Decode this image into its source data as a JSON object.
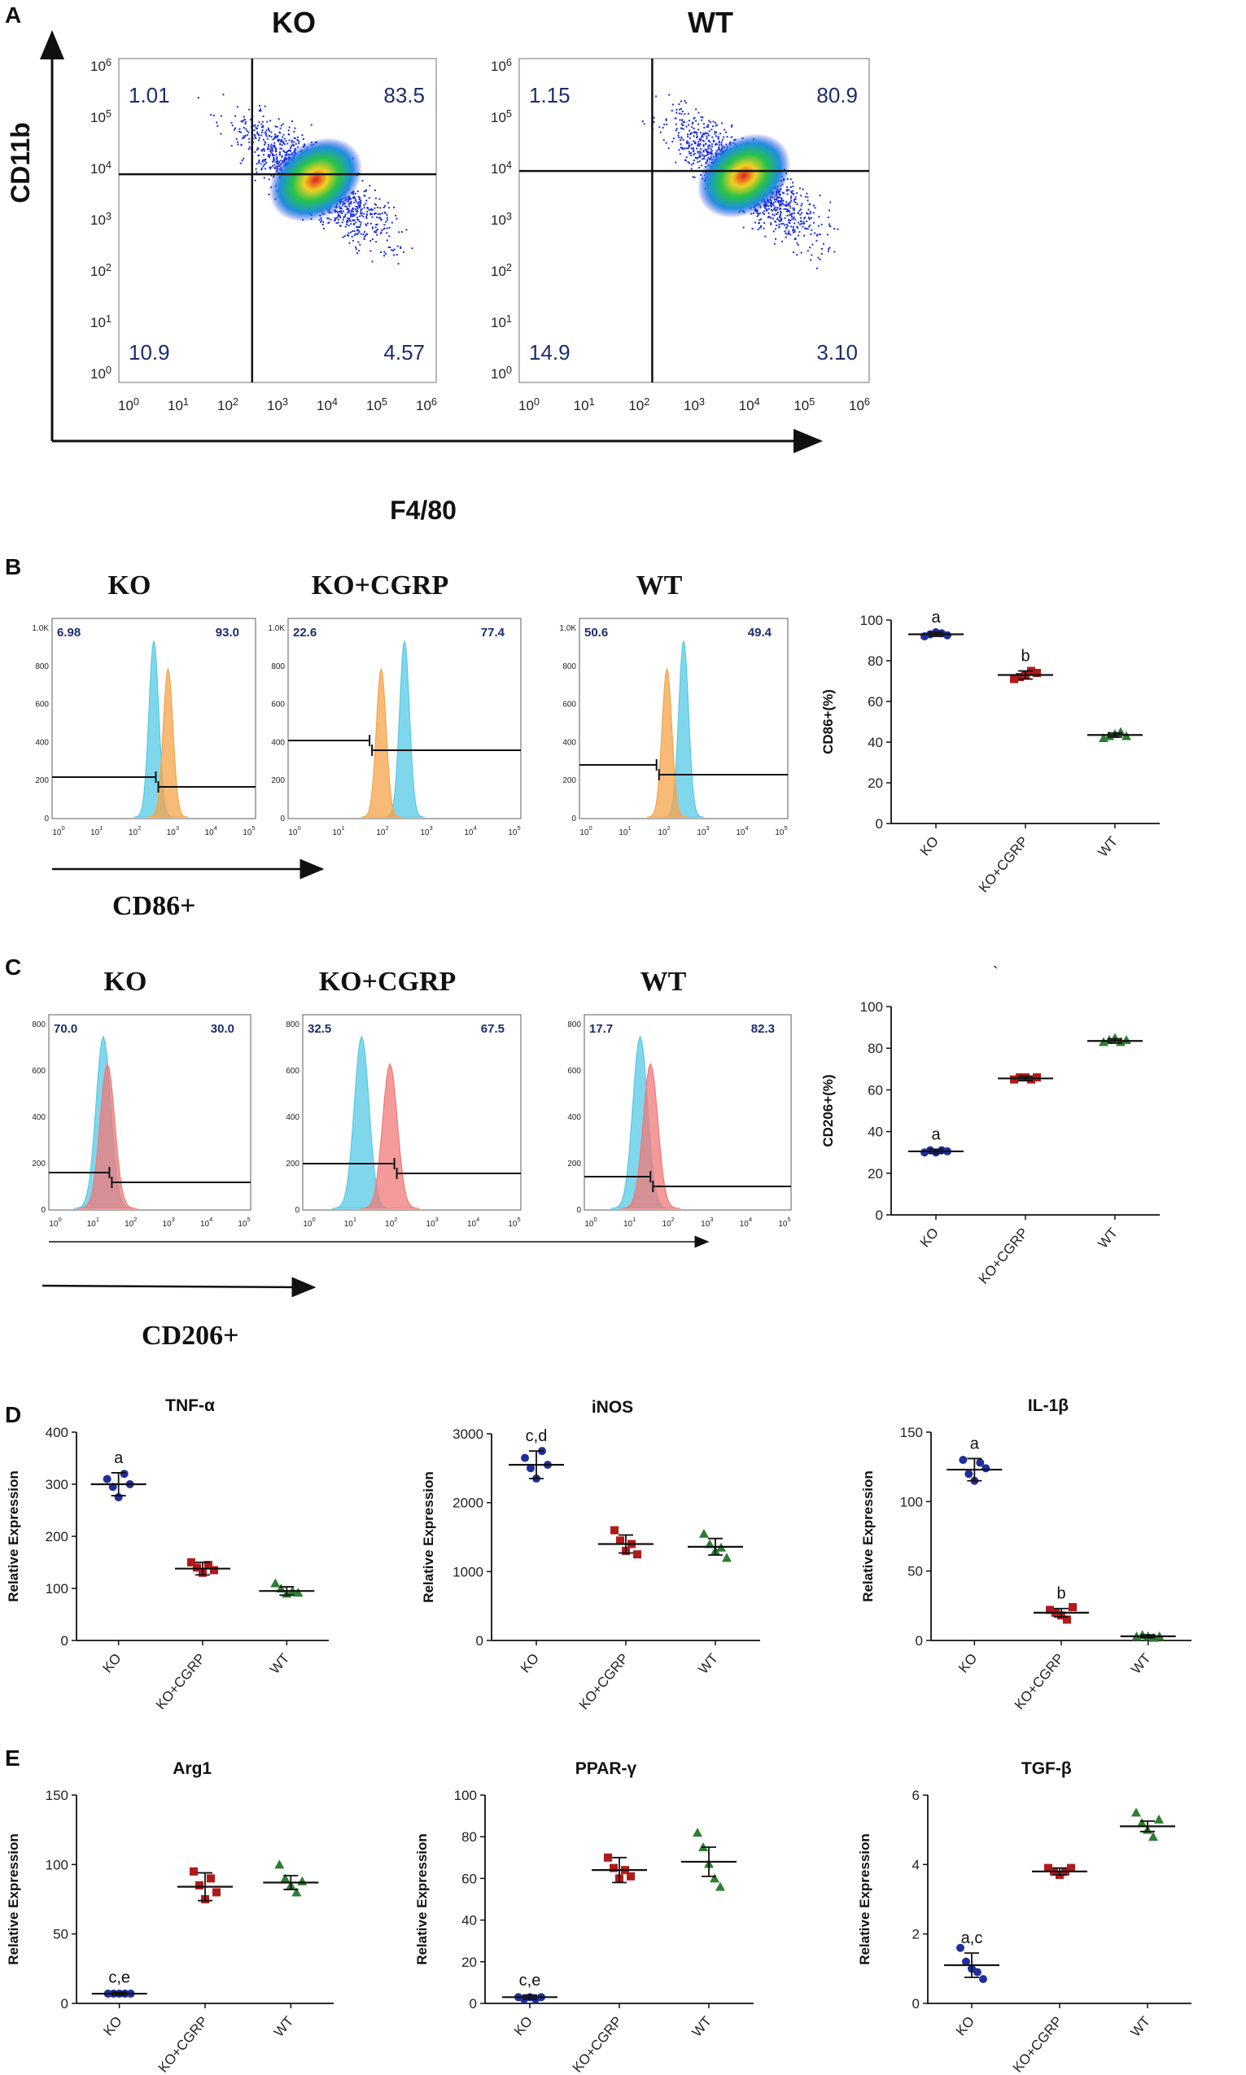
{
  "figure": {
    "panel_labels": [
      "A",
      "B",
      "C",
      "D",
      "E"
    ],
    "panelA": {
      "y_axis_label": "CD11b",
      "x_axis_label": "F4/80",
      "plots": [
        {
          "title": "KO",
          "quadrants": {
            "ul": "1.01",
            "ur": "83.5",
            "ll": "10.9",
            "lr": "4.57"
          }
        },
        {
          "title": "WT",
          "quadrants": {
            "ul": "1.15",
            "ur": "80.9",
            "ll": "14.9",
            "lr": "3.10"
          }
        }
      ]
    },
    "panelB": {
      "axis_label": "CD86+",
      "y_ticks": [
        "1.0K",
        "800",
        "600",
        "400",
        "200",
        "0"
      ],
      "histograms": [
        {
          "title": "KO",
          "left": "6.98",
          "right": "93.0"
        },
        {
          "title": "KO+CGRP",
          "left": "22.6",
          "right": "77.4"
        },
        {
          "title": "WT",
          "left": "50.6",
          "right": "49.4"
        }
      ]
    },
    "panelC": {
      "axis_label": "CD206+",
      "y_ticks": [
        "800",
        "600",
        "400",
        "200",
        "0"
      ],
      "histograms": [
        {
          "title": "KO",
          "left": "70.0",
          "right": "30.0"
        },
        {
          "title": "KO+CGRP",
          "left": "32.5",
          "right": "67.5"
        },
        {
          "title": "WT",
          "left": "17.7",
          "right": "82.3"
        }
      ]
    },
    "stray_mark": "`",
    "colors": {
      "KO": "#1f2f9a",
      "KO+CGRP": "#b11a1a",
      "WT": "#2e7d32",
      "hist_control": "#56c9e6",
      "hist_cd86": "#f5a34a",
      "hist_cd206": "#f07878",
      "density_low": "#1a2ee0",
      "density_high": "#e02020"
    }
  },
  "chart_data": [
    {
      "id": "B-dot",
      "type": "scatter",
      "title": "",
      "ylabel": "CD86+(%)",
      "ylim": [
        0,
        100
      ],
      "yticks": [
        0,
        20,
        40,
        60,
        80,
        100
      ],
      "categories": [
        "KO",
        "KO+CGRP",
        "WT"
      ],
      "means": [
        93,
        73,
        43.5
      ],
      "sd": [
        1,
        2,
        1
      ],
      "points": [
        [
          92,
          93,
          94,
          93.5,
          92.5
        ],
        [
          71,
          72,
          73,
          75,
          74
        ],
        [
          42,
          43,
          44,
          45,
          43
        ]
      ],
      "annotations": [
        "a",
        "b",
        ""
      ]
    },
    {
      "id": "C-dot",
      "type": "scatter",
      "title": "",
      "ylabel": "CD206+(%)",
      "ylim": [
        0,
        100
      ],
      "yticks": [
        0,
        20,
        40,
        60,
        80,
        100
      ],
      "categories": [
        "KO",
        "KO+CGRP",
        "WT"
      ],
      "means": [
        30.5,
        65.5,
        83.5
      ],
      "sd": [
        1,
        1,
        1
      ],
      "points": [
        [
          30,
          31,
          30,
          31,
          30.5
        ],
        [
          65,
          66,
          66,
          65,
          66
        ],
        [
          83,
          84,
          85,
          83,
          84
        ]
      ],
      "annotations": [
        "a",
        "",
        ""
      ]
    },
    {
      "id": "D-TNF",
      "type": "scatter",
      "title": "TNF-α",
      "ylabel": "Relative Expression",
      "ylim": [
        0,
        400
      ],
      "yticks": [
        0,
        100,
        200,
        300,
        400
      ],
      "categories": [
        "KO",
        "KO+CGRP",
        "WT"
      ],
      "means": [
        300,
        138,
        95
      ],
      "sd": [
        22,
        12,
        8
      ],
      "points": [
        [
          310,
          295,
          275,
          320,
          300
        ],
        [
          150,
          140,
          130,
          145,
          135
        ],
        [
          110,
          100,
          90,
          95,
          92
        ]
      ],
      "annotations": [
        "a",
        "",
        ""
      ]
    },
    {
      "id": "D-iNOS",
      "type": "scatter",
      "title": "iNOS",
      "ylabel": "Relative Expression",
      "ylim": [
        0,
        3000
      ],
      "yticks": [
        0,
        1000,
        2000,
        3000
      ],
      "categories": [
        "KO",
        "KO+CGRP",
        "WT"
      ],
      "means": [
        2550,
        1400,
        1360
      ],
      "sd": [
        200,
        130,
        120
      ],
      "points": [
        [
          2650,
          2500,
          2350,
          2750,
          2550
        ],
        [
          1600,
          1450,
          1300,
          1400,
          1250
        ],
        [
          1550,
          1400,
          1300,
          1350,
          1200
        ]
      ],
      "annotations": [
        "c,d",
        "",
        ""
      ]
    },
    {
      "id": "D-IL1b",
      "type": "scatter",
      "title": "IL-1β",
      "ylabel": "Relative Expression",
      "ylim": [
        0,
        150
      ],
      "yticks": [
        0,
        50,
        100,
        150
      ],
      "categories": [
        "KO",
        "KO+CGRP",
        "WT"
      ],
      "means": [
        123,
        20,
        3
      ],
      "sd": [
        8,
        3,
        1
      ],
      "points": [
        [
          130,
          120,
          115,
          128,
          124
        ],
        [
          22,
          20,
          18,
          15,
          24
        ],
        [
          3,
          4,
          3,
          2,
          3
        ]
      ],
      "annotations": [
        "a",
        "b",
        ""
      ]
    },
    {
      "id": "E-Arg1",
      "type": "scatter",
      "title": "Arg1",
      "ylabel": "Relative Expression",
      "ylim": [
        0,
        150
      ],
      "yticks": [
        0,
        50,
        100,
        150
      ],
      "categories": [
        "KO",
        "KO+CGRP",
        "WT"
      ],
      "means": [
        7,
        84,
        87
      ],
      "sd": [
        1,
        10,
        5
      ],
      "points": [
        [
          7,
          7,
          7,
          7,
          7
        ],
        [
          95,
          85,
          75,
          90,
          80
        ],
        [
          100,
          90,
          85,
          80,
          88
        ]
      ],
      "annotations": [
        "c,e",
        "",
        ""
      ]
    },
    {
      "id": "E-PPARg",
      "type": "scatter",
      "title": "PPAR-γ",
      "ylabel": "Relative Expression",
      "ylim": [
        0,
        100
      ],
      "yticks": [
        0,
        20,
        40,
        60,
        80,
        100
      ],
      "categories": [
        "KO",
        "KO+CGRP",
        "WT"
      ],
      "means": [
        3,
        64,
        68
      ],
      "sd": [
        1,
        6,
        7
      ],
      "points": [
        [
          3,
          2,
          3,
          2,
          3
        ],
        [
          70,
          65,
          60,
          64,
          61
        ],
        [
          82,
          75,
          67,
          60,
          56
        ]
      ],
      "annotations": [
        "c,e",
        "",
        ""
      ]
    },
    {
      "id": "E-TGFb",
      "type": "scatter",
      "title": "TGF-β",
      "ylabel": "Relative Expression",
      "ylim": [
        0,
        6
      ],
      "yticks": [
        0,
        2,
        4,
        6
      ],
      "categories": [
        "KO",
        "KO+CGRP",
        "WT"
      ],
      "means": [
        1.1,
        3.8,
        5.1
      ],
      "sd": [
        0.35,
        0.1,
        0.15
      ],
      "points": [
        [
          1.6,
          1.2,
          1.0,
          0.9,
          0.7
        ],
        [
          3.9,
          3.8,
          3.7,
          3.8,
          3.9
        ],
        [
          5.5,
          5.2,
          5.0,
          4.8,
          5.3
        ]
      ],
      "annotations": [
        "a,c",
        "",
        ""
      ]
    }
  ]
}
